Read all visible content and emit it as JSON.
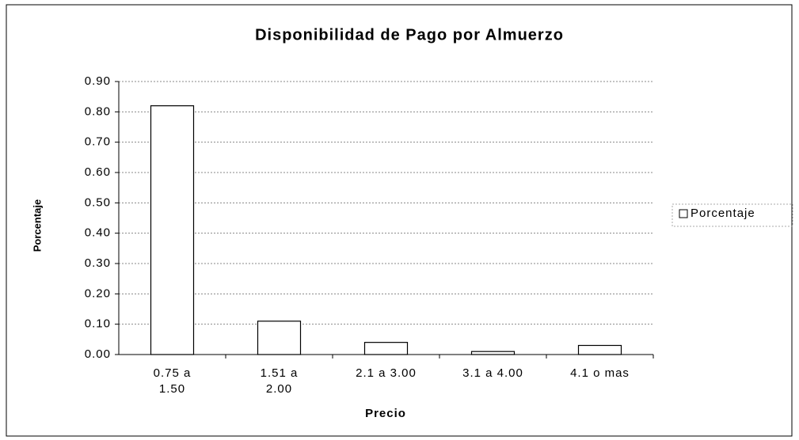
{
  "chart_data": {
    "type": "bar",
    "title": "Disponibilidad de Pago por Almuerzo",
    "x_label": "Precio",
    "y_label": "Porcentaje",
    "categories": [
      "0.75 a 1.50",
      "1.51 a 2.00",
      "2.1 a 3.00",
      "3.1 a 4.00",
      "4.1 o mas"
    ],
    "series": [
      {
        "name": "Porcentaje",
        "color": "#ffffff",
        "values": [
          0.82,
          0.11,
          0.04,
          0.01,
          0.03
        ]
      }
    ],
    "ylim": [
      0,
      0.9
    ],
    "yticks": [
      {
        "value": 0,
        "label": "0.00"
      },
      {
        "value": 0.1,
        "label": "0.10"
      },
      {
        "value": 0.2,
        "label": "0.20"
      },
      {
        "value": 0.3,
        "label": "0.30"
      },
      {
        "value": 0.4,
        "label": "0.40"
      },
      {
        "value": 0.5,
        "label": "0.50"
      },
      {
        "value": 0.6,
        "label": "0.60"
      },
      {
        "value": 0.7,
        "label": "0.70"
      },
      {
        "value": 0.8,
        "label": "0.80"
      },
      {
        "value": 0.9,
        "label": "0.90"
      }
    ],
    "grid": true,
    "legend": "right"
  }
}
